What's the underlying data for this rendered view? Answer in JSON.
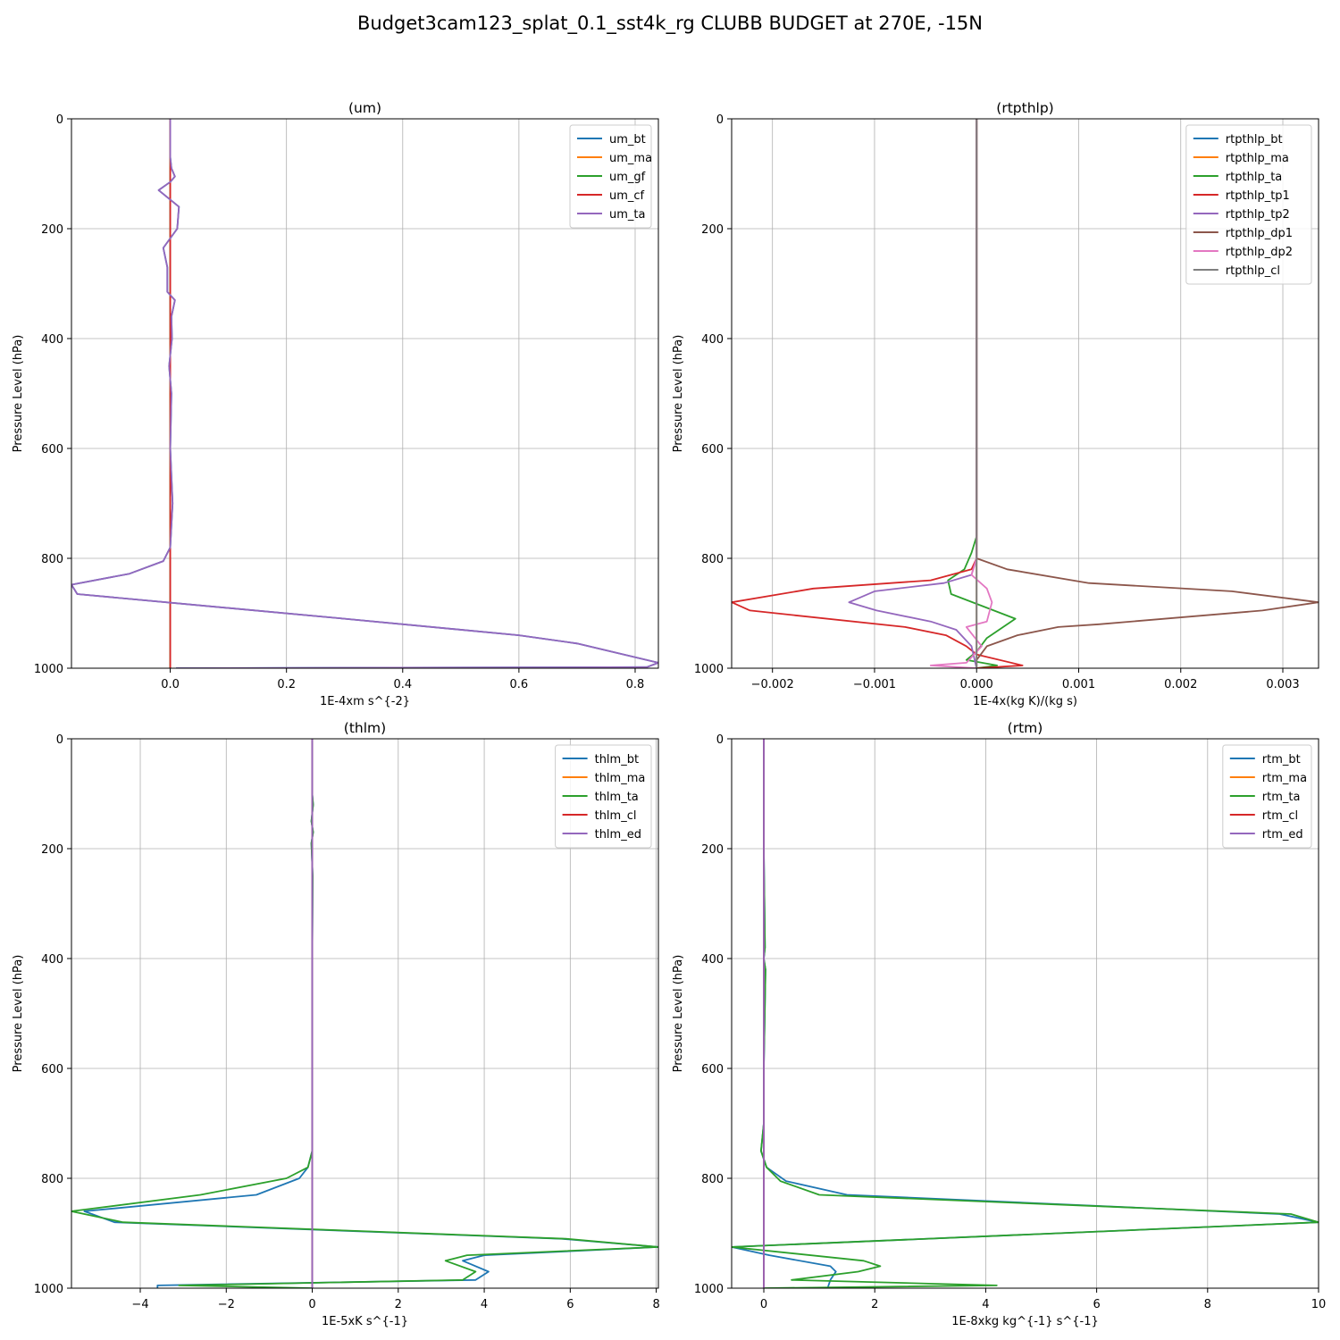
{
  "figure_title": "Budget3cam123_splat_0.1_sst4k_rg CLUBB BUDGET at 270E, -15N",
  "chart_data": [
    {
      "type": "line",
      "title": "(um)",
      "xlabel": "1E-4xm s^{-2}",
      "ylabel": "Pressure Level (hPa)",
      "xlim": [
        -0.17,
        0.84
      ],
      "ylim": [
        1000,
        0
      ],
      "xticks": [
        "0.0",
        "0.2",
        "0.4",
        "0.6",
        "0.8"
      ],
      "xtick_values": [
        0.0,
        0.2,
        0.4,
        0.6,
        0.8
      ],
      "yticks": [
        "0",
        "200",
        "400",
        "600",
        "800",
        "1000"
      ],
      "ytick_values": [
        0,
        200,
        400,
        600,
        800,
        1000
      ],
      "grid": true,
      "legend_position": "top-right",
      "series": [
        {
          "name": "um_bt",
          "color": "#1f77b4",
          "x": [
            0,
            0,
            0.002,
            0.008,
            0,
            -0.02,
            0.015,
            0.012,
            -0.012,
            -0.005,
            -0.005,
            0.008,
            0.002,
            0.003,
            -0.002,
            0.002,
            0,
            0.002,
            0.004,
            0,
            -0.012,
            -0.07,
            -0.17,
            -0.16,
            0.3,
            0.6,
            0.7,
            0.84,
            0.82,
            0.01
          ],
          "y": [
            0,
            70,
            90,
            105,
            115,
            130,
            160,
            200,
            235,
            270,
            315,
            330,
            360,
            400,
            450,
            500,
            600,
            650,
            700,
            780,
            805,
            828,
            848,
            865,
            910,
            940,
            955,
            990,
            998,
            1000
          ]
        },
        {
          "name": "um_ma",
          "color": "#ff7f0e",
          "x": [
            0,
            0,
            0,
            0,
            0
          ],
          "y": [
            0,
            200,
            500,
            800,
            1000
          ]
        },
        {
          "name": "um_gf",
          "color": "#2ca02c",
          "x": [
            0,
            0,
            0,
            0,
            0
          ],
          "y": [
            0,
            200,
            500,
            800,
            1000
          ]
        },
        {
          "name": "um_cf",
          "color": "#d62728",
          "x": [
            0,
            0,
            0,
            0,
            0
          ],
          "y": [
            0,
            200,
            500,
            800,
            1000
          ]
        },
        {
          "name": "um_ta",
          "color": "#9467bd",
          "x": [
            0,
            0,
            0.002,
            0.008,
            0,
            -0.02,
            0.015,
            0.012,
            -0.012,
            -0.005,
            -0.005,
            0.008,
            0.002,
            0.003,
            -0.002,
            0.002,
            0,
            0.002,
            0.004,
            0,
            -0.012,
            -0.07,
            -0.17,
            -0.16,
            0.3,
            0.6,
            0.7,
            0.84,
            0.82,
            0.01
          ],
          "y": [
            0,
            70,
            90,
            105,
            115,
            130,
            160,
            200,
            235,
            270,
            315,
            330,
            360,
            400,
            450,
            500,
            600,
            650,
            700,
            780,
            805,
            828,
            848,
            865,
            910,
            940,
            955,
            990,
            998,
            1000
          ]
        }
      ]
    },
    {
      "type": "line",
      "title": "(rtpthlp)",
      "xlabel": "1E-4x(kg K)/(kg s)",
      "ylabel": "Pressure Level (hPa)",
      "xlim": [
        -0.0024,
        0.00335
      ],
      "ylim": [
        1000,
        0
      ],
      "xticks": [
        "−0.002",
        "−0.001",
        "0.000",
        "0.001",
        "0.002",
        "0.003"
      ],
      "xtick_values": [
        -0.002,
        -0.001,
        0.0,
        0.001,
        0.002,
        0.003
      ],
      "yticks": [
        "0",
        "200",
        "400",
        "600",
        "800",
        "1000"
      ],
      "ytick_values": [
        0,
        200,
        400,
        600,
        800,
        1000
      ],
      "grid": true,
      "legend_position": "top-right",
      "series": [
        {
          "name": "rtpthlp_bt",
          "color": "#1f77b4",
          "x": [
            0,
            0,
            0,
            0
          ],
          "y": [
            0,
            400,
            800,
            1000
          ]
        },
        {
          "name": "rtpthlp_ma",
          "color": "#ff7f0e",
          "x": [
            0,
            0,
            0,
            0
          ],
          "y": [
            0,
            400,
            800,
            1000
          ]
        },
        {
          "name": "rtpthlp_ta",
          "color": "#2ca02c",
          "x": [
            0,
            0,
            -5e-05,
            -0.00012,
            -0.00028,
            -0.00025,
            0.00038,
            0.0001,
            0,
            -0.0001,
            0.0002,
            0
          ],
          "y": [
            0,
            760,
            790,
            820,
            840,
            865,
            910,
            945,
            970,
            985,
            995,
            1000
          ]
        },
        {
          "name": "rtpthlp_tp1",
          "color": "#d62728",
          "x": [
            0,
            0,
            -5e-05,
            -0.00045,
            -0.0016,
            -0.0024,
            -0.00222,
            -0.0007,
            -0.0003,
            -0.0001,
            0,
            0.00045,
            0
          ],
          "y": [
            0,
            800,
            820,
            840,
            855,
            880,
            895,
            925,
            940,
            960,
            975,
            995,
            1000
          ]
        },
        {
          "name": "rtpthlp_tp2",
          "color": "#9467bd",
          "x": [
            0,
            0,
            -5e-05,
            -0.00032,
            -0.001,
            -0.00125,
            -0.00098,
            -0.00045,
            -0.0002,
            -5e-05,
            0
          ],
          "y": [
            0,
            800,
            830,
            845,
            860,
            880,
            895,
            915,
            930,
            960,
            1000
          ]
        },
        {
          "name": "rtpthlp_dp1",
          "color": "#8c564b",
          "x": [
            0,
            0,
            0.0003,
            0.0011,
            0.0025,
            0.00335,
            0.0028,
            0.0012,
            0.0008,
            0.0004,
            0.0001,
            0,
            0
          ],
          "y": [
            0,
            800,
            820,
            845,
            860,
            880,
            895,
            920,
            925,
            940,
            960,
            985,
            1000
          ]
        },
        {
          "name": "rtpthlp_dp2",
          "color": "#e377c2",
          "x": [
            0,
            0,
            -5e-05,
            0.0001,
            0.00015,
            0.0001,
            -0.0001,
            5e-05,
            -0.0001,
            -0.00045,
            0
          ],
          "y": [
            0,
            800,
            830,
            855,
            880,
            915,
            925,
            960,
            990,
            995,
            1000
          ]
        },
        {
          "name": "rtpthlp_cl",
          "color": "#7f7f7f",
          "x": [
            0,
            0,
            0,
            0
          ],
          "y": [
            0,
            400,
            800,
            1000
          ]
        }
      ]
    },
    {
      "type": "line",
      "title": "(thlm)",
      "xlabel": "1E-5xK s^{-1}",
      "ylabel": "Pressure Level (hPa)",
      "xlim": [
        -5.6,
        8.05
      ],
      "ylim": [
        1000,
        0
      ],
      "xticks": [
        "−4",
        "−2",
        "0",
        "2",
        "4",
        "6",
        "8"
      ],
      "xtick_values": [
        -4,
        -2,
        0,
        2,
        4,
        6,
        8
      ],
      "yticks": [
        "0",
        "200",
        "400",
        "600",
        "800",
        "1000"
      ],
      "ytick_values": [
        0,
        200,
        400,
        600,
        800,
        1000
      ],
      "grid": true,
      "legend_position": "top-right",
      "series": [
        {
          "name": "thlm_bt",
          "color": "#1f77b4",
          "x": [
            0,
            0,
            0.02,
            -0.02,
            0.02,
            -0.02,
            0.01,
            0,
            0,
            0,
            -0.1,
            -0.3,
            -1.3,
            -5.3,
            -4.6,
            5.8,
            8.05,
            4.0,
            3.5,
            4.1,
            3.8,
            -3.6,
            -3.6
          ],
          "y": [
            0,
            100,
            120,
            150,
            170,
            190,
            250,
            400,
            600,
            750,
            780,
            800,
            830,
            860,
            880,
            910,
            925,
            940,
            950,
            970,
            985,
            995,
            1000
          ]
        },
        {
          "name": "thlm_ma",
          "color": "#ff7f0e",
          "x": [
            0,
            0,
            0,
            0,
            0
          ],
          "y": [
            0,
            250,
            500,
            750,
            1000
          ]
        },
        {
          "name": "thlm_ta",
          "color": "#2ca02c",
          "x": [
            0,
            0,
            0.02,
            -0.02,
            0.02,
            -0.02,
            0.01,
            0,
            0,
            0,
            -0.1,
            -0.6,
            -2.6,
            -5.6,
            -4.4,
            5.9,
            8.05,
            3.6,
            3.1,
            3.8,
            3.5,
            -3.1,
            0
          ],
          "y": [
            0,
            100,
            120,
            150,
            170,
            190,
            250,
            400,
            600,
            750,
            780,
            800,
            830,
            860,
            880,
            910,
            925,
            940,
            950,
            970,
            985,
            995,
            1000
          ]
        },
        {
          "name": "thlm_cl",
          "color": "#d62728",
          "x": [
            0,
            0,
            0,
            0,
            0
          ],
          "y": [
            0,
            250,
            500,
            750,
            1000
          ]
        },
        {
          "name": "thlm_ed",
          "color": "#9467bd",
          "x": [
            0,
            0,
            0,
            0,
            0
          ],
          "y": [
            0,
            250,
            500,
            750,
            1000
          ]
        }
      ]
    },
    {
      "type": "line",
      "title": "(rtm)",
      "xlabel": "1E-8xkg kg^{-1} s^{-1}",
      "ylabel": "Pressure Level (hPa)",
      "xlim": [
        -0.58,
        10.0
      ],
      "ylim": [
        1000,
        0
      ],
      "xticks": [
        "0",
        "2",
        "4",
        "6",
        "8",
        "10"
      ],
      "xtick_values": [
        0,
        2,
        4,
        6,
        8,
        10
      ],
      "yticks": [
        "0",
        "200",
        "400",
        "600",
        "800",
        "1000"
      ],
      "ytick_values": [
        0,
        200,
        400,
        600,
        800,
        1000
      ],
      "grid": true,
      "legend_position": "top-right",
      "series": [
        {
          "name": "rtm_bt",
          "color": "#1f77b4",
          "x": [
            0,
            0,
            0.02,
            0,
            0.03,
            0,
            0,
            -0.05,
            0.05,
            0.4,
            1.5,
            9.3,
            10.0,
            -0.58,
            0.1,
            1.2,
            1.3,
            1.2,
            1.15
          ],
          "y": [
            0,
            200,
            380,
            400,
            420,
            600,
            700,
            750,
            780,
            805,
            830,
            865,
            880,
            925,
            940,
            960,
            970,
            985,
            1000
          ]
        },
        {
          "name": "rtm_ma",
          "color": "#ff7f0e",
          "x": [
            0,
            0,
            0,
            0,
            0
          ],
          "y": [
            0,
            250,
            500,
            750,
            1000
          ]
        },
        {
          "name": "rtm_ta",
          "color": "#2ca02c",
          "x": [
            0,
            0,
            0.02,
            0,
            0.03,
            0,
            0,
            -0.05,
            0.05,
            0.3,
            1.0,
            9.5,
            10.0,
            -0.58,
            1.8,
            2.1,
            1.7,
            0.5,
            4.2,
            0
          ],
          "y": [
            0,
            200,
            380,
            400,
            420,
            600,
            700,
            750,
            780,
            805,
            830,
            865,
            880,
            925,
            950,
            960,
            970,
            985,
            995,
            1000
          ]
        },
        {
          "name": "rtm_cl",
          "color": "#d62728",
          "x": [
            0,
            0,
            0,
            0,
            0
          ],
          "y": [
            0,
            250,
            500,
            750,
            1000
          ]
        },
        {
          "name": "rtm_ed",
          "color": "#9467bd",
          "x": [
            0,
            0,
            0,
            0,
            0
          ],
          "y": [
            0,
            250,
            500,
            750,
            1000
          ]
        }
      ]
    }
  ]
}
